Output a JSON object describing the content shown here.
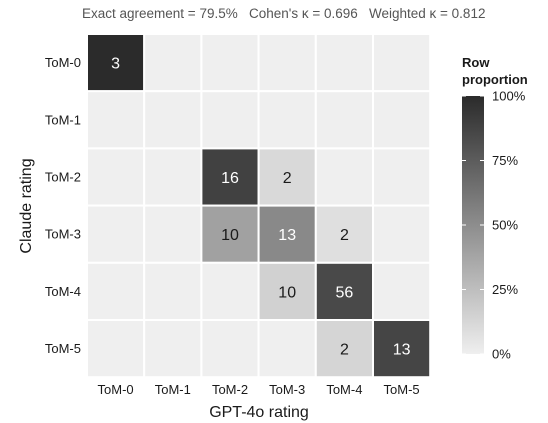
{
  "chart_data": {
    "type": "heatmap",
    "subtitle": "Exact agreement = 79.5%   Cohen's κ = 0.696   Weighted κ = 0.812",
    "xlabel": "GPT-4o rating",
    "ylabel": "Claude rating",
    "x_categories": [
      "ToM-0",
      "ToM-1",
      "ToM-2",
      "ToM-3",
      "ToM-4",
      "ToM-5"
    ],
    "y_categories": [
      "ToM-0",
      "ToM-1",
      "ToM-2",
      "ToM-3",
      "ToM-4",
      "ToM-5"
    ],
    "counts": [
      [
        3,
        0,
        0,
        0,
        0,
        0
      ],
      [
        0,
        0,
        0,
        0,
        0,
        0
      ],
      [
        0,
        0,
        16,
        2,
        0,
        0
      ],
      [
        0,
        0,
        10,
        13,
        2,
        0
      ],
      [
        0,
        0,
        0,
        10,
        56,
        0
      ],
      [
        0,
        0,
        0,
        0,
        2,
        13
      ]
    ],
    "fill_value": "row proportion",
    "legend": {
      "title_lines": [
        "Row",
        "proportion"
      ],
      "ticks": [
        "0%",
        "25%",
        "50%",
        "75%",
        "100%"
      ],
      "tick_values": [
        0,
        0.25,
        0.5,
        0.75,
        1.0
      ],
      "placement": "right"
    },
    "colors": {
      "low": "#efefef",
      "high": "#2b2b2b",
      "empty": "#efefef",
      "cell_border": "#ffffff",
      "label_dark": "#1a1a1a",
      "label_light": "#ffffff"
    }
  }
}
